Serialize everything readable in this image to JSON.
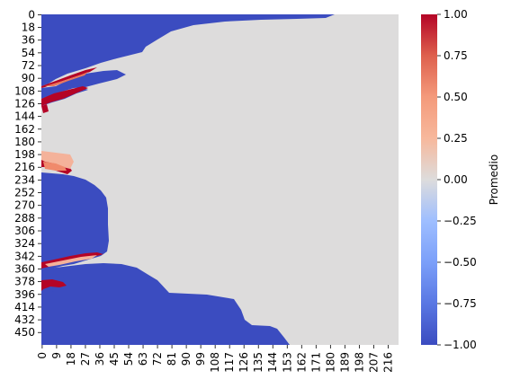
{
  "chart_data": {
    "type": "heatmap",
    "title": "",
    "xlabel": "",
    "ylabel": "",
    "y_ticks": [
      "0",
      "18",
      "36",
      "54",
      "72",
      "90",
      "108",
      "126",
      "144",
      "162",
      "180",
      "198",
      "216",
      "234",
      "252",
      "270",
      "288",
      "306",
      "324",
      "342",
      "360",
      "378",
      "396",
      "414",
      "432",
      "450"
    ],
    "x_ticks": [
      "0",
      "9",
      "18",
      "27",
      "36",
      "45",
      "54",
      "63",
      "72",
      "81",
      "90",
      "99",
      "108",
      "117",
      "126",
      "135",
      "144",
      "153",
      "162",
      "171",
      "180",
      "189",
      "198",
      "207",
      "216"
    ],
    "y_range": [
      0,
      468
    ],
    "x_range": [
      0,
      223
    ],
    "colorbar": {
      "label": "Promedio",
      "colormap": "coolwarm",
      "vmin": -1.0,
      "vmax": 1.0,
      "ticks": [
        "1.00",
        "0.75",
        "0.50",
        "0.25",
        "0.00",
        "−0.25",
        "−0.50",
        "−0.75",
        "−1.00"
      ]
    },
    "regions": [
      {
        "value": 0.0,
        "description": "land / neutral area"
      },
      {
        "value": -1.0,
        "description": "water area"
      },
      {
        "value": 1.0,
        "description": "coastal edge bands"
      }
    ],
    "colors": {
      "negative": "#3b4cc0",
      "neutral": "#dddcdc",
      "positive": "#b40426"
    }
  }
}
